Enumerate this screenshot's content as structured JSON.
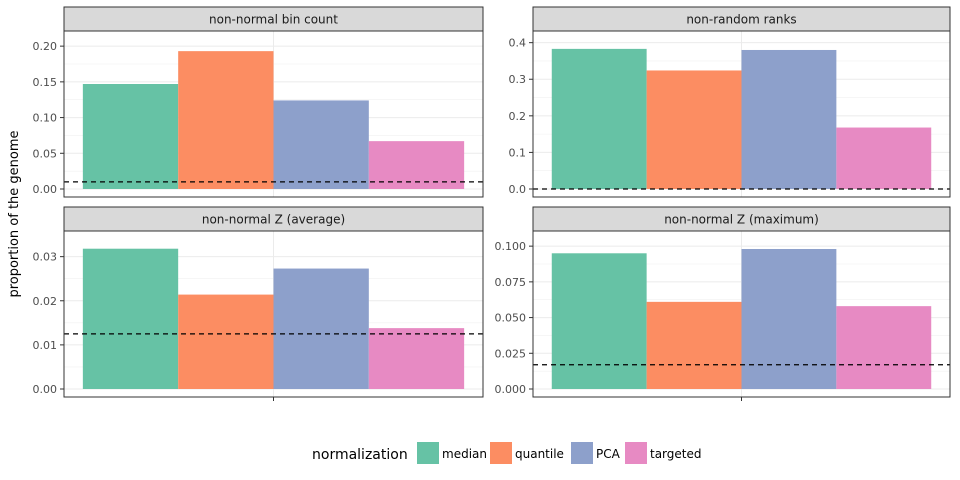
{
  "chart_data": {
    "type": "bar",
    "ylabel": "proportion of the genome",
    "legend": {
      "title": "normalization",
      "placement": "bottom",
      "entries": [
        "median",
        "quantile",
        "PCA",
        "targeted"
      ]
    },
    "colors": {
      "median": "#66c2a5",
      "quantile": "#fc8d62",
      "PCA": "#8da0cb",
      "targeted": "#e78ac3"
    },
    "panels": [
      {
        "title": "non-normal bin count",
        "ylim": [
          0,
          0.21
        ],
        "ticks": [
          "0.00",
          "0.05",
          "0.10",
          "0.15",
          "0.20"
        ],
        "tick_values": [
          0,
          0.05,
          0.1,
          0.15,
          0.2
        ],
        "values": [
          0.147,
          0.193,
          0.124,
          0.067
        ],
        "reference": 0.01
      },
      {
        "title": "non-random ranks",
        "ylim": [
          0,
          0.41
        ],
        "ticks": [
          "0.0",
          "0.1",
          "0.2",
          "0.3",
          "0.4"
        ],
        "tick_values": [
          0,
          0.1,
          0.2,
          0.3,
          0.4
        ],
        "values": [
          0.383,
          0.324,
          0.38,
          0.168
        ],
        "reference": 0.0
      },
      {
        "title": "non-normal Z (average)",
        "ylim": [
          0,
          0.034
        ],
        "ticks": [
          "0.00",
          "0.01",
          "0.02",
          "0.03"
        ],
        "tick_values": [
          0,
          0.01,
          0.02,
          0.03
        ],
        "values": [
          0.0318,
          0.0214,
          0.0273,
          0.0138
        ],
        "reference": 0.0125
      },
      {
        "title": "non-normal Z (maximum)",
        "ylim": [
          0,
          0.105
        ],
        "ticks": [
          "0.000",
          "0.025",
          "0.050",
          "0.075",
          "0.100"
        ],
        "tick_values": [
          0,
          0.025,
          0.05,
          0.075,
          0.1
        ],
        "values": [
          0.095,
          0.061,
          0.098,
          0.058
        ],
        "reference": 0.017
      }
    ]
  }
}
